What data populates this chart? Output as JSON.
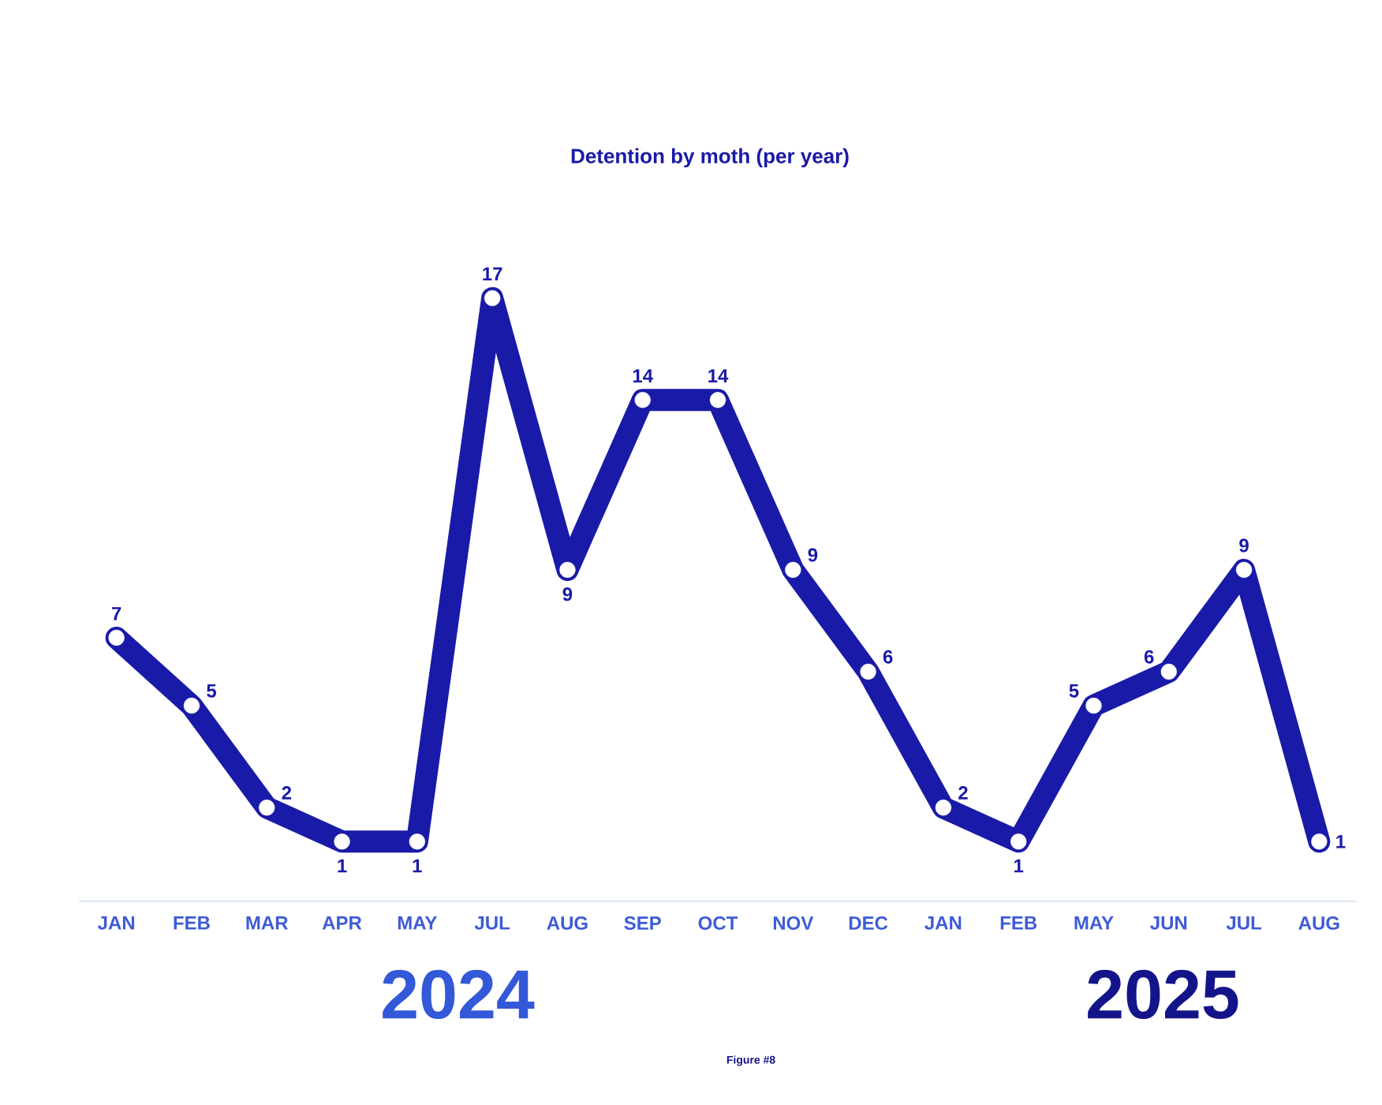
{
  "chart_data": {
    "type": "line",
    "title": "Detention by moth (per year)",
    "categories": [
      "JAN",
      "FEB",
      "MAR",
      "APR",
      "MAY",
      "JUL",
      "AUG",
      "SEP",
      "OCT",
      "NOV",
      "DEC",
      "JAN",
      "FEB",
      "MAY",
      "JUN",
      "JUL",
      "AUG"
    ],
    "values": [
      7,
      5,
      2,
      1,
      1,
      17,
      9,
      14,
      14,
      9,
      6,
      2,
      1,
      5,
      6,
      9,
      1
    ],
    "color": "#1a1aa8",
    "marker": "circle",
    "data_labels": true,
    "annotations": [
      "2024",
      "2025",
      "Figure #8"
    ]
  }
}
